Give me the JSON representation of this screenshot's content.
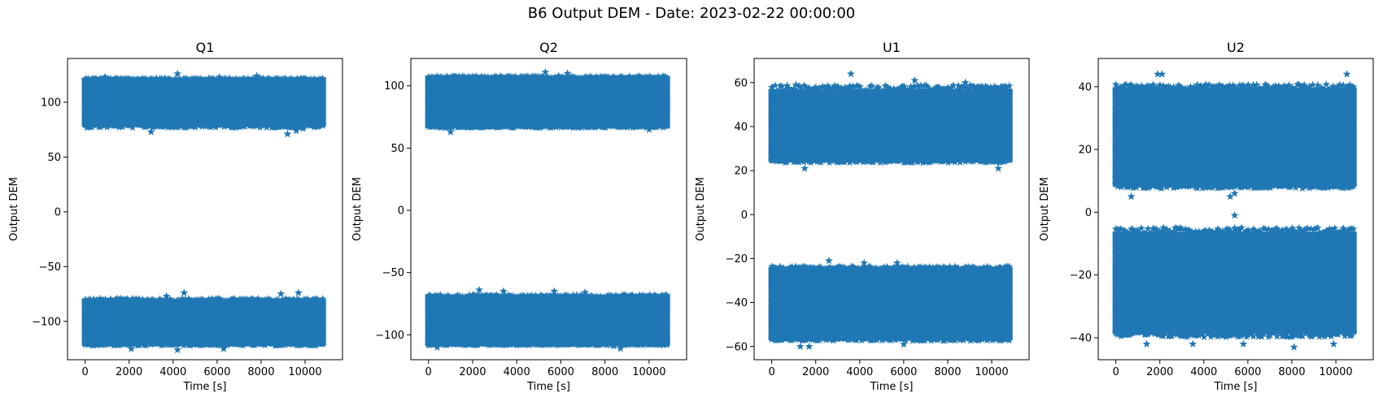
{
  "figure": {
    "suptitle": "B6 Output DEM - Date: 2023-02-22 00:00:00",
    "marker_color": "#1f77b4"
  },
  "chart_data": [
    {
      "type": "scatter",
      "title": "Q1",
      "xlabel": "Time [s]",
      "ylabel": "Output DEM",
      "xlim": [
        -800,
        11700
      ],
      "ylim": [
        -135,
        140
      ],
      "xticks": [
        0,
        2000,
        4000,
        6000,
        8000,
        10000
      ],
      "yticks": [
        -100,
        -50,
        0,
        50,
        100
      ],
      "ytick_labels": [
        "−100",
        "−50",
        "0",
        "50",
        "100"
      ],
      "marker": "star",
      "x_range": [
        0,
        10800
      ],
      "bands": [
        {
          "y_low": 80,
          "y_high": 120,
          "y_low_outliers_to": 71,
          "y_high_outliers_to": 126
        },
        {
          "y_low": -120,
          "y_high": -82,
          "y_low_outliers_to": -126,
          "y_high_outliers_to": -74
        }
      ],
      "outliers": [
        [
          4200,
          126
        ],
        [
          7800,
          124
        ],
        [
          6100,
          123
        ],
        [
          900,
          123
        ],
        [
          9200,
          71
        ],
        [
          3000,
          73
        ],
        [
          9600,
          74
        ],
        [
          9900,
          76
        ],
        [
          4500,
          -74
        ],
        [
          8900,
          -75
        ],
        [
          9700,
          -74
        ],
        [
          3700,
          -77
        ],
        [
          4200,
          -126
        ],
        [
          6300,
          -125
        ],
        [
          2100,
          -125
        ]
      ]
    },
    {
      "type": "scatter",
      "title": "Q2",
      "xlabel": "Time [s]",
      "ylabel": "Output DEM",
      "xlim": [
        -800,
        11700
      ],
      "ylim": [
        -120,
        122
      ],
      "xticks": [
        0,
        2000,
        4000,
        6000,
        8000,
        10000
      ],
      "yticks": [
        -100,
        -50,
        0,
        50,
        100
      ],
      "ytick_labels": [
        "−100",
        "−50",
        "0",
        "50",
        "100"
      ],
      "marker": "star",
      "x_range": [
        0,
        10800
      ],
      "bands": [
        {
          "y_low": 68,
          "y_high": 106,
          "y_low_outliers_to": 63,
          "y_high_outliers_to": 111
        },
        {
          "y_low": -107,
          "y_high": -70,
          "y_low_outliers_to": -111,
          "y_high_outliers_to": -64
        }
      ],
      "outliers": [
        [
          5300,
          111
        ],
        [
          6300,
          110
        ],
        [
          5900,
          108
        ],
        [
          1000,
          63
        ],
        [
          10000,
          65
        ],
        [
          2300,
          -64
        ],
        [
          3400,
          -65
        ],
        [
          5700,
          -65
        ],
        [
          7100,
          -66
        ],
        [
          400,
          -110
        ],
        [
          8700,
          -111
        ],
        [
          8400,
          -109
        ]
      ]
    },
    {
      "type": "scatter",
      "title": "U1",
      "xlabel": "Time [s]",
      "ylabel": "Output DEM",
      "xlim": [
        -800,
        11700
      ],
      "ylim": [
        -66,
        71
      ],
      "xticks": [
        0,
        2000,
        4000,
        6000,
        8000,
        10000
      ],
      "yticks": [
        -60,
        -40,
        -20,
        0,
        20,
        40,
        60
      ],
      "ytick_labels": [
        "−60",
        "−40",
        "−20",
        "0",
        "20",
        "40",
        "60"
      ],
      "marker": "star",
      "x_range": [
        0,
        10800
      ],
      "bands": [
        {
          "y_low": 25,
          "y_high": 56,
          "y_low_outliers_to": 21,
          "y_high_outliers_to": 64
        },
        {
          "y_low": -56,
          "y_high": -25,
          "y_low_outliers_to": -60,
          "y_high_outliers_to": -21
        }
      ],
      "outliers": [
        [
          3600,
          64
        ],
        [
          6500,
          61
        ],
        [
          8800,
          60
        ],
        [
          1100,
          59
        ],
        [
          10300,
          21
        ],
        [
          1500,
          21
        ],
        [
          2600,
          -21
        ],
        [
          4200,
          -22
        ],
        [
          5700,
          -22
        ],
        [
          1300,
          -60
        ],
        [
          1700,
          -60
        ],
        [
          6000,
          -59
        ]
      ]
    },
    {
      "type": "scatter",
      "title": "U2",
      "xlabel": "Time [s]",
      "ylabel": "Output DEM",
      "xlim": [
        -800,
        11700
      ],
      "ylim": [
        -47,
        49
      ],
      "xticks": [
        0,
        2000,
        4000,
        6000,
        8000,
        10000
      ],
      "yticks": [
        -40,
        -20,
        0,
        20,
        40
      ],
      "ytick_labels": [
        "−40",
        "−20",
        "0",
        "20",
        "40"
      ],
      "marker": "star",
      "x_range": [
        0,
        10800
      ],
      "bands": [
        {
          "y_low": 9,
          "y_high": 39,
          "y_low_outliers_to": 5,
          "y_high_outliers_to": 44
        },
        {
          "y_low": -38,
          "y_high": -7,
          "y_low_outliers_to": -43,
          "y_high_outliers_to": -1
        }
      ],
      "outliers": [
        [
          1900,
          44
        ],
        [
          2100,
          44
        ],
        [
          10500,
          44
        ],
        [
          700,
          5
        ],
        [
          5200,
          5
        ],
        [
          5400,
          6
        ],
        [
          5400,
          -1
        ],
        [
          1400,
          -42
        ],
        [
          3500,
          -42
        ],
        [
          5800,
          -42
        ],
        [
          8100,
          -43
        ],
        [
          9900,
          -42
        ]
      ]
    }
  ]
}
